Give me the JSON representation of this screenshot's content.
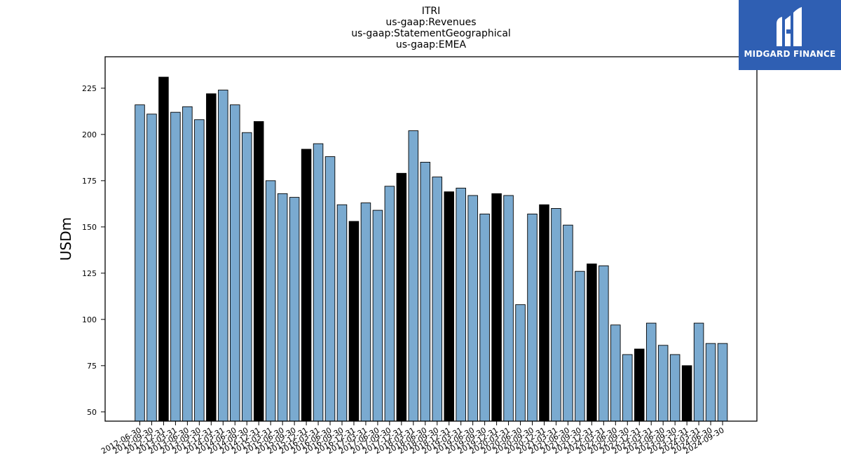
{
  "chart_data": {
    "type": "bar",
    "title_lines": [
      "ITRI",
      "us-gaap:Revenues",
      "us-gaap:StatementGeographical",
      "us-gaap:EMEA"
    ],
    "ylabel": "USDm",
    "ylim": [
      45,
      242
    ],
    "yticks": [
      50,
      75,
      100,
      125,
      150,
      175,
      200,
      225
    ],
    "grid": false,
    "colors": {
      "bar": "#7aaad0",
      "highlight": "#000000",
      "edge": "#000000"
    },
    "categories": [
      "2012-06-30",
      "2012-09-30",
      "2012-12-31",
      "2013-03-31",
      "2013-06-30",
      "2013-09-30",
      "2013-12-31",
      "2014-03-31",
      "2014-06-30",
      "2014-09-30",
      "2014-12-31",
      "2015-03-31",
      "2015-06-30",
      "2015-09-30",
      "2015-12-31",
      "2016-03-31",
      "2016-06-30",
      "2016-09-30",
      "2016-12-31",
      "2017-03-31",
      "2017-06-30",
      "2017-09-30",
      "2017-12-31",
      "2018-03-31",
      "2018-06-30",
      "2018-09-30",
      "2018-12-31",
      "2019-03-31",
      "2019-06-30",
      "2019-09-30",
      "2019-12-31",
      "2020-03-31",
      "2020-06-30",
      "2020-09-30",
      "2020-12-31",
      "2021-03-31",
      "2021-06-30",
      "2021-09-30",
      "2021-12-31",
      "2022-03-31",
      "2022-06-30",
      "2022-09-30",
      "2022-12-31",
      "2023-03-31",
      "2023-06-30",
      "2023-09-30",
      "2023-12-31",
      "2024-03-31",
      "2024-06-30",
      "2024-09-30"
    ],
    "values": [
      216,
      211,
      231,
      212,
      215,
      208,
      222,
      224,
      216,
      201,
      207,
      175,
      168,
      166,
      192,
      195,
      188,
      162,
      153,
      163,
      159,
      172,
      179,
      202,
      185,
      177,
      169,
      171,
      167,
      157,
      168,
      167,
      108,
      157,
      162,
      160,
      151,
      126,
      130,
      129,
      97,
      81,
      84,
      98,
      86,
      81,
      75,
      98,
      87,
      87
    ],
    "highlighted": [
      "2012-12-31",
      "2013-12-31",
      "2014-12-31",
      "2015-12-31",
      "2016-12-31",
      "2017-12-31",
      "2018-12-31",
      "2019-12-31",
      "2020-12-31",
      "2021-12-31",
      "2022-12-31",
      "2023-12-31"
    ]
  },
  "logo": {
    "text": "MIDGARD FINANCE"
  }
}
